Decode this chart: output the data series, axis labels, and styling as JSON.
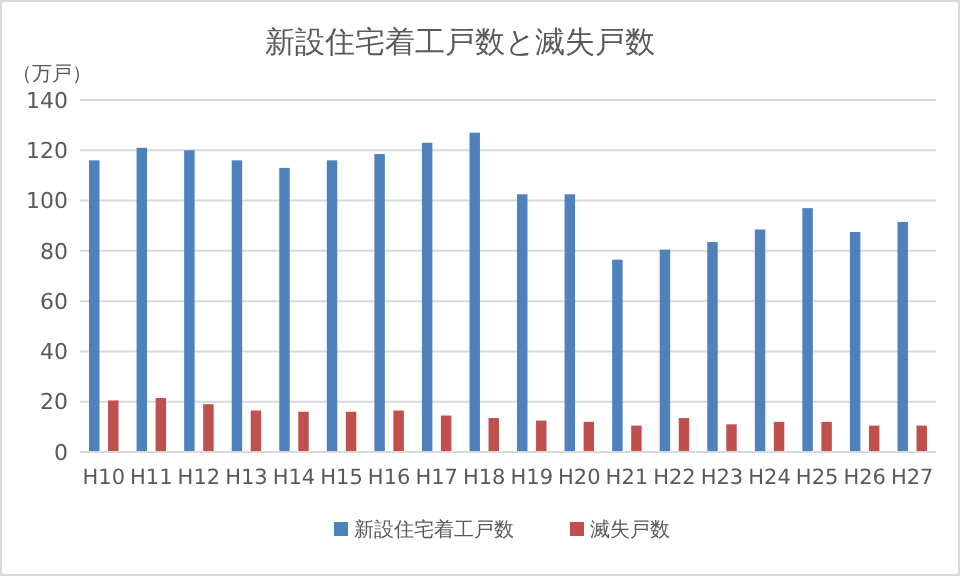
{
  "chart_data": {
    "type": "bar",
    "title": "新設住宅着工戸数と滅失戸数",
    "ylabel": "（万戸）",
    "categories": [
      "H10",
      "H11",
      "H12",
      "H13",
      "H14",
      "H15",
      "H16",
      "H17",
      "H18",
      "H19",
      "H20",
      "H21",
      "H22",
      "H23",
      "H24",
      "H25",
      "H26",
      "H27"
    ],
    "series": [
      {
        "name": "新設住宅着工戸数",
        "color": "#4f81bd",
        "values": [
          116,
          121,
          120,
          116,
          113,
          116,
          118.5,
          123,
          127,
          102.5,
          102.5,
          76.5,
          80.5,
          83.5,
          88.5,
          97,
          87.5,
          91.5
        ]
      },
      {
        "name": "滅失戸数",
        "color": "#c0504d",
        "values": [
          20.5,
          21.5,
          19,
          16.5,
          16,
          16,
          16.5,
          14.5,
          13.5,
          12.5,
          12,
          10.5,
          13.5,
          11,
          12,
          12,
          10.5,
          10.5
        ]
      }
    ],
    "ylim": [
      0,
      140
    ],
    "yticks": [
      0,
      20,
      40,
      60,
      80,
      100,
      120,
      140
    ],
    "grid": "y",
    "legend": "bottom"
  }
}
